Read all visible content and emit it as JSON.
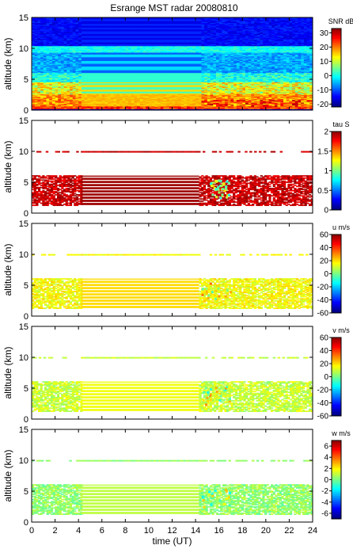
{
  "title": "Esrange MST radar 20080810",
  "chart_data": [
    {
      "type": "heatmap",
      "quantity": "SNR",
      "colorbar_label": "SNR dB",
      "colorbar_ticks": [
        -20,
        -10,
        0,
        10,
        20,
        30
      ],
      "zlim": [
        -22,
        33
      ],
      "ylabel": "altitude (km)",
      "yticks": [
        0,
        5,
        10,
        15
      ],
      "ylim": [
        0,
        15
      ],
      "xlim": [
        0,
        24
      ],
      "features": [
        {
          "altitude_km": [
            0.3,
            2.5
          ],
          "time_UT": [
            0,
            24
          ],
          "level_dB": 15
        },
        {
          "altitude_km": [
            2.5,
            4.5
          ],
          "time_UT": [
            4.2,
            14.3
          ],
          "level_dB": 18
        },
        {
          "altitude_km": [
            9.4,
            10.4
          ],
          "time_UT": [
            0,
            24
          ],
          "level_dB": -3
        },
        {
          "altitude_km": [
            11,
            15
          ],
          "time_UT": [
            0,
            24
          ],
          "level_dB": -14
        }
      ]
    },
    {
      "type": "heatmap",
      "quantity": "tau",
      "colorbar_label": "tau S",
      "colorbar_ticks": [
        0,
        0.5,
        1,
        1.5,
        2
      ],
      "zlim": [
        0,
        2
      ],
      "ylabel": "altitude (km)",
      "yticks": [
        0,
        5,
        10,
        15
      ],
      "ylim": [
        0,
        15
      ],
      "xlim": [
        0,
        24
      ]
    },
    {
      "type": "heatmap",
      "quantity": "u",
      "colorbar_label": "u m/s",
      "colorbar_ticks": [
        -60,
        -40,
        -20,
        0,
        20,
        40,
        60
      ],
      "zlim": [
        -60,
        60
      ],
      "ylabel": "altitude (km)",
      "yticks": [
        0,
        5,
        10,
        15
      ],
      "ylim": [
        0,
        15
      ],
      "xlim": [
        0,
        24
      ]
    },
    {
      "type": "heatmap",
      "quantity": "v",
      "colorbar_label": "v m/s",
      "colorbar_ticks": [
        -60,
        -40,
        -20,
        0,
        20,
        40,
        60
      ],
      "zlim": [
        -60,
        60
      ],
      "ylabel": "altitude (km)",
      "yticks": [
        0,
        5,
        10,
        15
      ],
      "ylim": [
        0,
        15
      ],
      "xlim": [
        0,
        24
      ]
    },
    {
      "type": "heatmap",
      "quantity": "w",
      "colorbar_label": "w m/s",
      "colorbar_ticks": [
        -6,
        -4,
        -2,
        0,
        2,
        4,
        6
      ],
      "zlim": [
        -7,
        7
      ],
      "ylabel": "altitude (km)",
      "yticks": [
        0,
        5,
        10,
        15
      ],
      "ylim": [
        0,
        15
      ],
      "xlim": [
        0,
        24
      ],
      "xticks": [
        0,
        2,
        4,
        6,
        8,
        10,
        12,
        14,
        16,
        18,
        20,
        22,
        24
      ],
      "xlabel": "time (UT)"
    }
  ]
}
